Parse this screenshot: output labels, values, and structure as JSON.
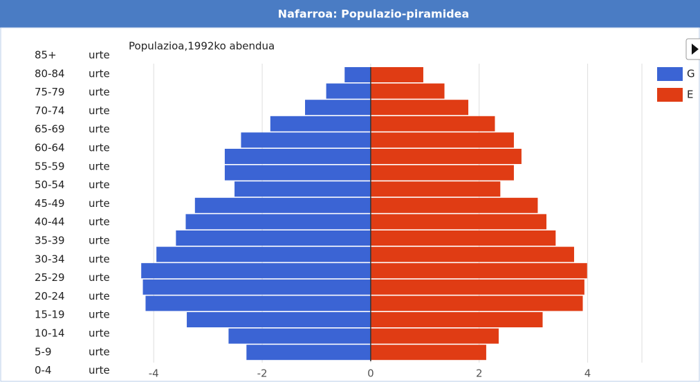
{
  "chart_data": {
    "type": "pyramid",
    "title": "Nafarroa: Populazio-piramidea",
    "subtitle": "Populazioa,1992ko abendua",
    "unit": "urte",
    "categories": [
      "85+",
      "80-84",
      "75-79",
      "70-74",
      "65-69",
      "60-64",
      "55-59",
      "50-54",
      "45-49",
      "40-44",
      "35-39",
      "30-34",
      "25-29",
      "20-24",
      "15-19",
      "10-14",
      "5-9",
      "0-4"
    ],
    "series": [
      {
        "name": "G",
        "color": "#3b64d4",
        "values": [
          -0.48,
          -0.82,
          -1.21,
          -1.85,
          -2.39,
          -2.69,
          -2.69,
          -2.51,
          -3.24,
          -3.41,
          -3.59,
          -3.95,
          -4.23,
          -4.2,
          -4.15,
          -3.39,
          -2.62,
          -2.29
        ]
      },
      {
        "name": "E",
        "color": "#e03c14",
        "values": [
          0.97,
          1.36,
          1.8,
          2.29,
          2.64,
          2.78,
          2.64,
          2.39,
          3.08,
          3.24,
          3.41,
          3.75,
          3.99,
          3.94,
          3.91,
          3.17,
          2.36,
          2.13
        ]
      }
    ],
    "xlim": [
      -4.5,
      5
    ],
    "xticks": [
      -4,
      -2,
      0,
      2,
      4
    ],
    "grid": true
  }
}
